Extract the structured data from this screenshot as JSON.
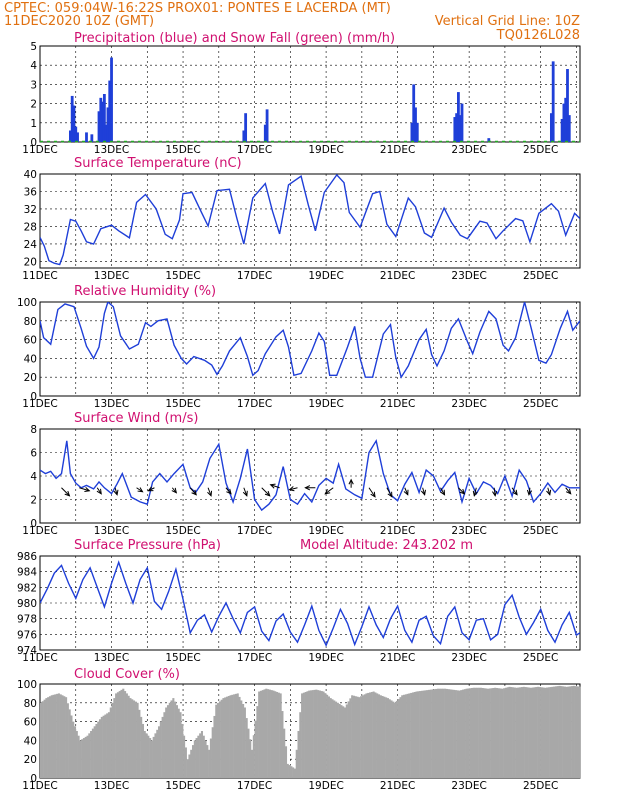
{
  "header": {
    "line1": "CPTEC:   059:04W-16:22S   PROX01: PONTES E LACERDA (MT)",
    "line2": "11DEC2020 10Z (GMT)",
    "grid_note": "Vertical Grid Line: 10Z",
    "run_code": "TQ0126L028"
  },
  "colors": {
    "header": "#e07010",
    "panel_title": "#d01070",
    "series_line": "#1f3fd8",
    "precip_bar": "#1f3fd8",
    "snow_bar": "#22aa22",
    "cloud_bar": "#a8a8a8",
    "wind_arrow": "#000000"
  },
  "x_axis": {
    "labels": [
      "11DEC",
      "13DEC",
      "15DEC",
      "17DEC",
      "19DEC",
      "21DEC",
      "23DEC",
      "25DEC"
    ],
    "label_days": [
      0,
      2,
      4,
      6,
      8,
      10,
      12,
      14
    ],
    "vertical_gridlines": "10Z",
    "range_days": [
      0,
      15.1
    ]
  },
  "chart_data": [
    {
      "type": "bar",
      "title": "Precipitation (blue) and Snow Fall (green) (mm/h)",
      "ylim": [
        0,
        5
      ],
      "yticks": [
        0,
        1,
        2,
        3,
        4,
        5
      ],
      "series": [
        {
          "color": "#1f3fd8",
          "x": [
            0.85,
            0.9,
            0.95,
            1.0,
            1.05,
            1.3,
            1.45,
            1.65,
            1.7,
            1.75,
            1.8,
            1.85,
            1.9,
            1.95,
            2.0,
            5.7,
            5.75,
            6.3,
            6.35,
            10.4,
            10.45,
            10.5,
            10.55,
            11.6,
            11.65,
            11.7,
            11.75,
            11.8,
            12.55,
            14.3,
            14.35,
            14.6,
            14.65,
            14.7,
            14.75,
            14.8
          ],
          "values": [
            0.6,
            2.4,
            1.9,
            0.8,
            0.5,
            0.5,
            0.4,
            1.6,
            2.3,
            2.1,
            2.5,
            0.9,
            1.8,
            3.2,
            4.4,
            0.6,
            1.5,
            0.9,
            1.7,
            1.0,
            3.0,
            1.8,
            1.0,
            1.3,
            1.5,
            2.6,
            1.4,
            2.0,
            0.2,
            1.5,
            4.2,
            1.2,
            2.0,
            2.3,
            3.8,
            1.4
          ]
        },
        {
          "color": "#22aa22",
          "x": [],
          "values": []
        }
      ]
    },
    {
      "type": "line",
      "title": "Surface Temperature (nC)",
      "ylim": [
        18.5,
        40
      ],
      "yticks": [
        20,
        24,
        28,
        32,
        36,
        40
      ],
      "x": [
        0,
        0.12,
        0.25,
        0.4,
        0.55,
        0.65,
        0.85,
        1.0,
        1.15,
        1.3,
        1.5,
        1.7,
        2.0,
        2.2,
        2.5,
        2.7,
        2.95,
        3.25,
        3.5,
        3.7,
        3.9,
        4.0,
        4.25,
        4.5,
        4.7,
        4.95,
        5.3,
        5.5,
        5.7,
        5.95,
        6.3,
        6.5,
        6.7,
        6.95,
        7.3,
        7.5,
        7.7,
        7.95,
        8.3,
        8.5,
        8.65,
        8.95,
        9.3,
        9.5,
        9.7,
        9.95,
        10.3,
        10.5,
        10.75,
        10.95,
        11.3,
        11.5,
        11.75,
        11.95,
        12.3,
        12.5,
        12.75,
        12.95,
        13.3,
        13.5,
        13.7,
        13.95,
        14.3,
        14.5,
        14.7,
        14.95,
        15.1
      ],
      "series": [
        {
          "values": [
            25.5,
            23.5,
            20.2,
            19.6,
            19.3,
            21.5,
            29.6,
            29.2,
            27.0,
            24.5,
            24.0,
            27.5,
            28.3,
            27.0,
            25.4,
            33.5,
            35.3,
            32.0,
            26.2,
            25.2,
            29.5,
            35.5,
            35.8,
            31.5,
            28.1,
            36.2,
            36.5,
            30.0,
            24.0,
            34.5,
            37.8,
            31.5,
            26.3,
            37.5,
            39.5,
            33.0,
            27.0,
            35.8,
            39.8,
            38.0,
            31.2,
            27.8,
            35.5,
            36.0,
            28.5,
            25.7,
            34.5,
            32.5,
            26.5,
            25.5,
            32.2,
            29.0,
            26.0,
            25.2,
            29.2,
            28.8,
            25.2,
            27.0,
            29.8,
            29.3,
            24.5,
            31.0,
            33.2,
            31.5,
            26.0,
            31.0,
            29.8
          ]
        }
      ]
    },
    {
      "type": "line",
      "title": "Relative Humidity (%)",
      "ylim": [
        0,
        100
      ],
      "yticks": [
        0,
        20,
        40,
        60,
        80,
        100
      ],
      "x": [
        0,
        0.1,
        0.3,
        0.5,
        0.7,
        0.95,
        1.15,
        1.3,
        1.5,
        1.65,
        1.8,
        1.9,
        2.05,
        2.25,
        2.5,
        2.75,
        2.95,
        3.1,
        3.3,
        3.55,
        3.75,
        3.95,
        4.1,
        4.3,
        4.6,
        4.8,
        4.95,
        5.1,
        5.3,
        5.6,
        5.8,
        5.95,
        6.1,
        6.3,
        6.6,
        6.8,
        6.95,
        7.1,
        7.3,
        7.6,
        7.8,
        7.95,
        8.1,
        8.3,
        8.6,
        8.8,
        8.95,
        9.1,
        9.3,
        9.6,
        9.8,
        9.95,
        10.1,
        10.3,
        10.6,
        10.8,
        10.95,
        11.1,
        11.3,
        11.5,
        11.7,
        11.95,
        12.1,
        12.3,
        12.55,
        12.75,
        12.95,
        13.1,
        13.3,
        13.55,
        13.75,
        13.95,
        14.15,
        14.3,
        14.55,
        14.75,
        14.9,
        15.1
      ],
      "series": [
        {
          "values": [
            80,
            62,
            55,
            92,
            98,
            95,
            72,
            53,
            40,
            52,
            88,
            100,
            95,
            64,
            50,
            55,
            78,
            74,
            80,
            82,
            54,
            40,
            34,
            42,
            38,
            33,
            23,
            32,
            48,
            62,
            42,
            22,
            27,
            45,
            63,
            70,
            52,
            22,
            24,
            48,
            67,
            58,
            22,
            22,
            52,
            74,
            40,
            20,
            20,
            66,
            76,
            41,
            20,
            32,
            60,
            71,
            44,
            32,
            48,
            72,
            82,
            58,
            45,
            68,
            90,
            82,
            54,
            48,
            62,
            100,
            70,
            38,
            35,
            44,
            72,
            90,
            70,
            80
          ]
        }
      ]
    },
    {
      "type": "line",
      "title": "Surface Wind (m/s)",
      "ylim": [
        0,
        8
      ],
      "yticks": [
        0,
        2,
        4,
        6,
        8
      ],
      "x": [
        0,
        0.15,
        0.3,
        0.45,
        0.6,
        0.75,
        0.85,
        1.0,
        1.15,
        1.3,
        1.5,
        1.65,
        1.8,
        2.0,
        2.15,
        2.3,
        2.55,
        2.8,
        3.0,
        3.15,
        3.35,
        3.55,
        3.75,
        4.0,
        4.2,
        4.35,
        4.55,
        4.75,
        5.0,
        5.2,
        5.4,
        5.6,
        5.8,
        6.0,
        6.2,
        6.4,
        6.6,
        6.8,
        7.0,
        7.2,
        7.4,
        7.6,
        7.8,
        8.0,
        8.2,
        8.35,
        8.55,
        8.8,
        9.0,
        9.2,
        9.4,
        9.6,
        9.8,
        10.0,
        10.2,
        10.4,
        10.6,
        10.8,
        11.0,
        11.2,
        11.4,
        11.6,
        11.8,
        12.0,
        12.2,
        12.4,
        12.6,
        12.8,
        13.0,
        13.2,
        13.4,
        13.6,
        13.8,
        14.0,
        14.2,
        14.4,
        14.6,
        14.8,
        15.0,
        15.1
      ],
      "series": [
        {
          "values": [
            4.5,
            4.2,
            4.4,
            3.8,
            4.2,
            7.0,
            4.2,
            3.4,
            3.0,
            3.2,
            2.9,
            3.5,
            3.0,
            2.5,
            3.3,
            4.2,
            2.2,
            1.8,
            1.6,
            3.5,
            4.2,
            3.5,
            4.2,
            5.0,
            3.0,
            2.6,
            3.5,
            5.5,
            6.7,
            3.4,
            1.8,
            3.8,
            6.3,
            2.0,
            1.1,
            1.6,
            2.4,
            4.8,
            2.0,
            1.6,
            2.5,
            1.8,
            3.2,
            3.8,
            3.4,
            5.0,
            2.9,
            2.4,
            2.1,
            6.0,
            7.0,
            4.2,
            2.4,
            1.9,
            3.3,
            4.3,
            2.6,
            4.5,
            4.0,
            2.7,
            3.6,
            4.3,
            1.8,
            3.8,
            2.5,
            3.5,
            3.2,
            2.5,
            4.0,
            2.3,
            4.5,
            3.6,
            1.8,
            2.5,
            3.4,
            2.6,
            3.3,
            3.0,
            3.0,
            3.0
          ]
        }
      ],
      "wind_vectors": {
        "x": [
          0.6,
          1.1,
          1.6,
          2.1,
          2.7,
          3.2,
          3.7,
          4.2,
          4.7,
          5.2,
          5.7,
          6.2,
          6.7,
          7.2,
          7.7,
          8.2,
          8.7,
          9.2,
          9.7,
          10.2,
          10.7,
          11.2,
          11.7,
          12.2,
          12.7,
          13.2,
          13.7,
          14.2,
          14.7
        ],
        "u": [
          0.8,
          1.0,
          0.4,
          0.2,
          0.6,
          -0.6,
          0.4,
          0.6,
          0.3,
          0.5,
          0.3,
          0.8,
          -0.9,
          -0.8,
          -1.0,
          -0.8,
          0.0,
          0.6,
          0.5,
          0.3,
          0.2,
          0.4,
          0.6,
          -0.2,
          0.1,
          0.5,
          -0.1,
          0.2,
          0.5
        ],
        "v": [
          -0.8,
          -0.3,
          -0.6,
          -0.7,
          -0.4,
          -0.3,
          -0.5,
          -0.7,
          -0.8,
          -0.6,
          -0.8,
          -0.8,
          0.3,
          -0.2,
          0.0,
          -0.6,
          0.8,
          -0.9,
          -0.9,
          -0.7,
          -0.7,
          -0.7,
          -0.6,
          -0.8,
          -0.8,
          -0.7,
          -0.7,
          -0.7,
          -0.6
        ]
      }
    },
    {
      "type": "line",
      "title": "Surface Pressure (hPa)",
      "annotation": "Model Altitude: 243.202 m",
      "ylim": [
        974,
        986
      ],
      "yticks": [
        974,
        976,
        978,
        980,
        982,
        984,
        986
      ],
      "x": [
        0,
        0.2,
        0.4,
        0.6,
        0.8,
        1.0,
        1.2,
        1.4,
        1.6,
        1.8,
        2.0,
        2.2,
        2.4,
        2.6,
        2.8,
        3.0,
        3.2,
        3.4,
        3.6,
        3.8,
        4.0,
        4.2,
        4.4,
        4.6,
        4.8,
        5.0,
        5.2,
        5.4,
        5.6,
        5.8,
        6.0,
        6.2,
        6.4,
        6.6,
        6.8,
        7.0,
        7.2,
        7.4,
        7.6,
        7.8,
        8.0,
        8.2,
        8.4,
        8.6,
        8.8,
        9.0,
        9.2,
        9.4,
        9.6,
        9.8,
        10.0,
        10.2,
        10.4,
        10.6,
        10.8,
        11.0,
        11.2,
        11.4,
        11.6,
        11.8,
        12.0,
        12.2,
        12.4,
        12.6,
        12.8,
        13.0,
        13.2,
        13.4,
        13.6,
        13.8,
        14.0,
        14.2,
        14.4,
        14.6,
        14.8,
        15.0,
        15.1
      ],
      "series": [
        {
          "values": [
            980.0,
            981.8,
            983.8,
            984.8,
            982.5,
            980.6,
            983.0,
            984.5,
            982.0,
            979.5,
            982.5,
            985.2,
            982.5,
            980.0,
            983.0,
            984.5,
            980.2,
            979.2,
            981.5,
            984.3,
            980.5,
            976.2,
            977.8,
            978.5,
            976.3,
            978.3,
            980.0,
            978.0,
            976.2,
            978.8,
            979.5,
            976.4,
            975.2,
            977.7,
            978.6,
            976.3,
            975.0,
            977.2,
            979.6,
            976.5,
            974.6,
            976.8,
            979.2,
            977.4,
            974.7,
            977.0,
            979.5,
            977.2,
            975.6,
            978.0,
            979.6,
            976.5,
            975.0,
            977.8,
            978.3,
            975.8,
            974.8,
            978.3,
            979.5,
            976.2,
            975.3,
            977.8,
            978.0,
            975.3,
            976.0,
            979.8,
            981.0,
            978.2,
            976.0,
            977.5,
            979.2,
            976.5,
            975.0,
            977.2,
            978.8,
            975.9,
            976.2
          ]
        }
      ]
    },
    {
      "type": "area",
      "title": "Cloud Cover (%)",
      "ylim": [
        0,
        100
      ],
      "yticks": [
        0,
        20,
        40,
        60,
        80,
        100
      ],
      "x": [
        0,
        0.15,
        0.3,
        0.5,
        0.7,
        0.9,
        1.1,
        1.3,
        1.5,
        1.7,
        1.9,
        2.1,
        2.3,
        2.5,
        2.7,
        2.9,
        3.1,
        3.3,
        3.5,
        3.7,
        3.9,
        4.1,
        4.3,
        4.5,
        4.7,
        4.9,
        5.1,
        5.3,
        5.5,
        5.7,
        5.9,
        6.1,
        6.3,
        6.5,
        6.7,
        6.9,
        7.1,
        7.3,
        7.5,
        7.7,
        7.9,
        8.1,
        8.3,
        8.5,
        8.7,
        8.9,
        9.1,
        9.3,
        9.5,
        9.7,
        9.9,
        10.1,
        10.3,
        10.5,
        10.7,
        10.9,
        11.1,
        11.3,
        11.5,
        11.7,
        11.9,
        12.1,
        12.3,
        12.5,
        12.7,
        12.9,
        13.1,
        13.3,
        13.5,
        13.7,
        13.9,
        14.1,
        14.3,
        14.5,
        14.7,
        14.9,
        15.1
      ],
      "series": [
        {
          "values": [
            80,
            85,
            88,
            90,
            86,
            60,
            40,
            45,
            55,
            65,
            70,
            90,
            95,
            85,
            80,
            50,
            40,
            55,
            75,
            85,
            70,
            20,
            40,
            50,
            30,
            78,
            85,
            88,
            90,
            75,
            30,
            92,
            95,
            93,
            90,
            15,
            10,
            90,
            93,
            94,
            92,
            85,
            80,
            75,
            88,
            86,
            90,
            92,
            88,
            85,
            80,
            88,
            90,
            92,
            93,
            94,
            95,
            95,
            94,
            93,
            95,
            96,
            96,
            95,
            96,
            95,
            97,
            96,
            97,
            96,
            97,
            96,
            97,
            98,
            97,
            98,
            97
          ]
        }
      ]
    }
  ]
}
